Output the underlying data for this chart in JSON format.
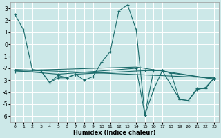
{
  "xlabel": "Humidex (Indice chaleur)",
  "background_color": "#cce8e8",
  "grid_color": "#ffffff",
  "line_color": "#1a6b6b",
  "xlim": [
    -0.5,
    23.5
  ],
  "ylim": [
    -6.5,
    3.5
  ],
  "xticks": [
    0,
    1,
    2,
    3,
    4,
    5,
    6,
    7,
    8,
    9,
    10,
    11,
    12,
    13,
    14,
    15,
    16,
    17,
    18,
    19,
    20,
    21,
    22,
    23
  ],
  "yticks": [
    -6,
    -5,
    -4,
    -3,
    -2,
    -1,
    0,
    1,
    2,
    3
  ],
  "series1": [
    [
      0,
      2.5
    ],
    [
      1,
      1.2
    ],
    [
      2,
      -2.1
    ],
    [
      3,
      -2.2
    ],
    [
      4,
      -3.2
    ],
    [
      5,
      -2.6
    ],
    [
      6,
      -2.8
    ],
    [
      7,
      -2.5
    ],
    [
      8,
      -3.0
    ],
    [
      9,
      -2.7
    ],
    [
      10,
      -1.5
    ],
    [
      11,
      -0.6
    ],
    [
      12,
      2.8
    ],
    [
      13,
      3.3
    ],
    [
      14,
      1.2
    ],
    [
      15,
      -5.9
    ],
    [
      16,
      -3.8
    ],
    [
      17,
      -2.2
    ],
    [
      18,
      -2.4
    ],
    [
      19,
      -4.6
    ],
    [
      20,
      -4.7
    ],
    [
      21,
      -3.7
    ],
    [
      22,
      -3.7
    ],
    [
      23,
      -2.8
    ]
  ],
  "series2": [
    [
      0,
      -2.1
    ],
    [
      23,
      -2.8
    ]
  ],
  "series3": [
    [
      0,
      -2.2
    ],
    [
      14,
      -1.9
    ],
    [
      23,
      -2.9
    ]
  ],
  "series4": [
    [
      0,
      -2.3
    ],
    [
      3,
      -2.2
    ],
    [
      4,
      -3.2
    ],
    [
      5,
      -2.8
    ],
    [
      6,
      -2.8
    ],
    [
      7,
      -2.5
    ],
    [
      15,
      -2.2
    ],
    [
      16,
      -2.2
    ],
    [
      17,
      -2.2
    ],
    [
      18,
      -2.4
    ],
    [
      23,
      -2.9
    ]
  ],
  "series5": [
    [
      0,
      -2.2
    ],
    [
      5,
      -2.5
    ],
    [
      14,
      -2.0
    ],
    [
      15,
      -5.9
    ],
    [
      16,
      -2.2
    ],
    [
      17,
      -2.2
    ],
    [
      19,
      -4.6
    ],
    [
      20,
      -4.7
    ],
    [
      21,
      -3.8
    ],
    [
      22,
      -3.6
    ],
    [
      23,
      -2.8
    ]
  ]
}
